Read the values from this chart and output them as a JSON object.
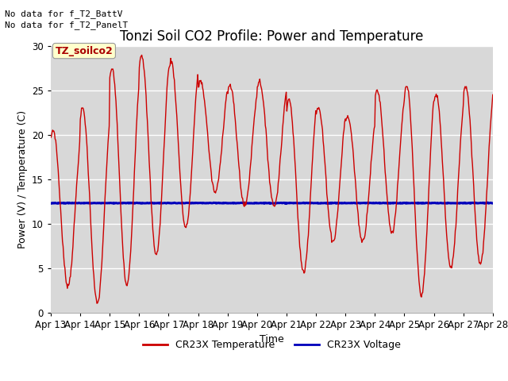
{
  "title": "Tonzi Soil CO2 Profile: Power and Temperature",
  "xlabel": "Time",
  "ylabel": "Power (V) / Temperature (C)",
  "ylim": [
    0,
    30
  ],
  "voltage_value": 12.3,
  "no_data_text1": "No data for f_T2_BattV",
  "no_data_text2": "No data for f_T2_PanelT",
  "legend_label_box": "TZ_soilco2",
  "legend_temp": "CR23X Temperature",
  "legend_volt": "CR23X Voltage",
  "temp_color": "#cc0000",
  "volt_color": "#0000bb",
  "plot_bg_color": "#d8d8d8",
  "fig_bg_color": "#ffffff",
  "title_fontsize": 12,
  "label_fontsize": 9,
  "tick_fontsize": 8.5,
  "x_tick_labels": [
    "Apr 13",
    "Apr 14",
    "Apr 15",
    "Apr 16",
    "Apr 17",
    "Apr 18",
    "Apr 19",
    "Apr 20",
    "Apr 21",
    "Apr 22",
    "Apr 23",
    "Apr 24",
    "Apr 25",
    "Apr 26",
    "Apr 27",
    "Apr 28"
  ],
  "daily_peaks": [
    20.5,
    23.0,
    27.5,
    29.0,
    28.3,
    26.0,
    25.5,
    26.0,
    24.0,
    23.0,
    22.0,
    25.0,
    25.5,
    24.5,
    25.5
  ],
  "daily_mins": [
    3.0,
    1.0,
    3.0,
    6.5,
    9.5,
    13.5,
    12.0,
    12.0,
    4.5,
    8.0,
    8.0,
    9.0,
    2.0,
    5.0,
    5.5
  ],
  "peak_hour": 0.58
}
